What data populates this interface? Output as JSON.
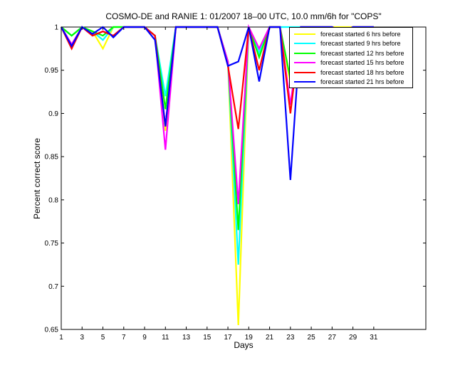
{
  "chart_data": {
    "type": "line",
    "title": "COSMO-DE and RANIE 1: 01/2007 18–00 UTC, 10.0 mm/6h for \"COPS\"",
    "xlabel": "Days",
    "ylabel": "Percent correct score",
    "xlim": [
      1,
      36
    ],
    "ylim": [
      0.65,
      1
    ],
    "x_ticks": [
      "1",
      "3",
      "5",
      "7",
      "9",
      "11",
      "13",
      "15",
      "17",
      "19",
      "21",
      "23",
      "25",
      "27",
      "29",
      "31"
    ],
    "y_ticks": [
      "0.65",
      "0.7",
      "0.75",
      "0.8",
      "0.85",
      "0.9",
      "0.95",
      "1"
    ],
    "grid": false,
    "legend_position": "top-right",
    "x": [
      1,
      2,
      3,
      4,
      5,
      6,
      7,
      8,
      9,
      10,
      11,
      12,
      13,
      14,
      15,
      16,
      17,
      18,
      19,
      20,
      21,
      22,
      23,
      24,
      25,
      26,
      27,
      28,
      29,
      30,
      31
    ],
    "series": [
      {
        "name": "forecast started 6 hrs before",
        "color": "#ffff00",
        "values": [
          1,
          0.98,
          1,
          0.995,
          0.975,
          1,
          1,
          1,
          1,
          0.99,
          0.88,
          1,
          1,
          1,
          1,
          1,
          0.96,
          0.655,
          1,
          0.975,
          1,
          1,
          0.935,
          1,
          1,
          1,
          1,
          1,
          1,
          1,
          1
        ]
      },
      {
        "name": "forecast started 9 hrs before",
        "color": "#00ffff",
        "values": [
          1,
          0.99,
          1,
          0.995,
          0.985,
          1,
          1,
          1,
          1,
          0.99,
          0.92,
          1,
          1,
          1,
          1,
          1,
          0.96,
          0.725,
          1,
          0.97,
          1,
          1,
          1,
          1,
          1,
          1,
          1,
          0.995,
          1,
          1,
          1
        ]
      },
      {
        "name": "forecast started 12 hrs before",
        "color": "#00ff00",
        "values": [
          1,
          0.99,
          1,
          0.995,
          0.99,
          1,
          1,
          1,
          1,
          0.99,
          0.905,
          1,
          1,
          1,
          1,
          1,
          0.96,
          0.765,
          1,
          0.965,
          1,
          1,
          0.94,
          1,
          1,
          1,
          1,
          0.995,
          1,
          1,
          1
        ]
      },
      {
        "name": "forecast started 15 hrs before",
        "color": "#ff00ff",
        "values": [
          1,
          0.98,
          1,
          0.99,
          0.995,
          0.99,
          1,
          1,
          1,
          0.99,
          0.858,
          1,
          1,
          1,
          1,
          1,
          0.96,
          0.795,
          1,
          0.975,
          1,
          1,
          0.91,
          1,
          1,
          1,
          1,
          0.995,
          1,
          1,
          1
        ]
      },
      {
        "name": "forecast started 18 hrs before",
        "color": "#ff0000",
        "values": [
          1,
          0.975,
          1,
          0.99,
          0.995,
          0.99,
          1,
          1,
          1,
          0.99,
          0.885,
          1,
          1,
          1,
          1,
          1,
          0.955,
          0.882,
          1,
          0.95,
          1,
          1,
          0.9,
          1,
          1,
          1,
          1,
          0.995,
          1,
          1,
          1
        ]
      },
      {
        "name": "forecast started 21 hrs before",
        "color": "#0000ff",
        "values": [
          1,
          0.978,
          1,
          0.992,
          1,
          0.988,
          1,
          1,
          1,
          0.985,
          0.885,
          1,
          1,
          1,
          1,
          1,
          0.955,
          0.96,
          1,
          0.937,
          1,
          1,
          0.823,
          1,
          1,
          1,
          1,
          0.993,
          1,
          1,
          1
        ]
      }
    ]
  }
}
